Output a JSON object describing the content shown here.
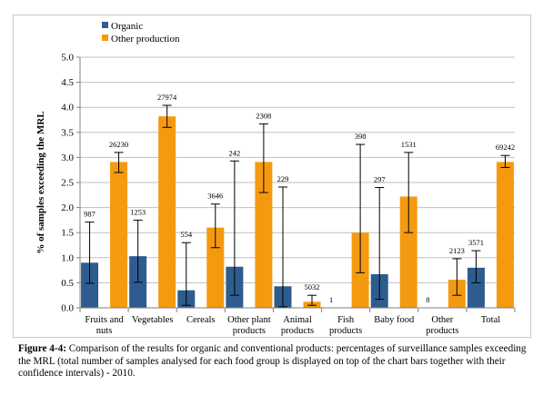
{
  "chart_data": {
    "type": "bar",
    "title": "",
    "ylabel": "% of samples exceeding the MRL",
    "xlabel": "",
    "ylim": [
      0,
      5.0
    ],
    "ytick_step": 0.5,
    "yticks": [
      "0.0",
      "0.5",
      "1.0",
      "1.5",
      "2.0",
      "2.5",
      "3.0",
      "3.5",
      "4.0",
      "4.5",
      "5.0"
    ],
    "grid": true,
    "legend_position": "top-left",
    "categories": [
      [
        "Fruits and",
        "nuts"
      ],
      [
        "Vegetables"
      ],
      [
        "Cereals"
      ],
      [
        "Other plant",
        "products"
      ],
      [
        "Animal",
        "products"
      ],
      [
        "Fish",
        "products"
      ],
      [
        "Baby food"
      ],
      [
        "Other",
        "products"
      ],
      [
        "Total"
      ]
    ],
    "series": [
      {
        "name": "Organic",
        "color": "#2e5c8e",
        "values": [
          0.9,
          1.03,
          0.35,
          0.82,
          0.43,
          0,
          0.67,
          0,
          0.8
        ],
        "ci_low": [
          0.49,
          0.51,
          0.05,
          0.25,
          0.02,
          null,
          0.17,
          null,
          0.5
        ],
        "ci_high": [
          1.71,
          1.75,
          1.3,
          2.93,
          2.41,
          null,
          2.4,
          null,
          1.14
        ],
        "n_labels": [
          "987",
          "1253",
          "554",
          "242",
          "229",
          "1",
          "297",
          "8",
          "3571"
        ]
      },
      {
        "name": "Other production",
        "color": "#f59a10",
        "values": [
          2.91,
          3.82,
          1.6,
          2.91,
          0.12,
          1.5,
          2.22,
          0.56,
          2.91
        ],
        "ci_low": [
          2.7,
          3.6,
          1.2,
          2.3,
          0.05,
          0.7,
          1.5,
          0.25,
          2.8
        ],
        "ci_high": [
          3.1,
          4.04,
          2.07,
          3.67,
          0.25,
          3.26,
          3.1,
          0.98,
          3.04
        ],
        "n_labels": [
          "26230",
          "27974",
          "3646",
          "2308",
          "5032",
          "398",
          "1531",
          "2123",
          "69242"
        ]
      }
    ]
  },
  "caption": {
    "label": "Figure 4-4:",
    "text": " Comparison of the results for organic and conventional products: percentages of surveillance samples exceeding the MRL (total number of samples analysed for each food group is displayed on top of the chart bars together with their confidence intervals) - 2010."
  }
}
